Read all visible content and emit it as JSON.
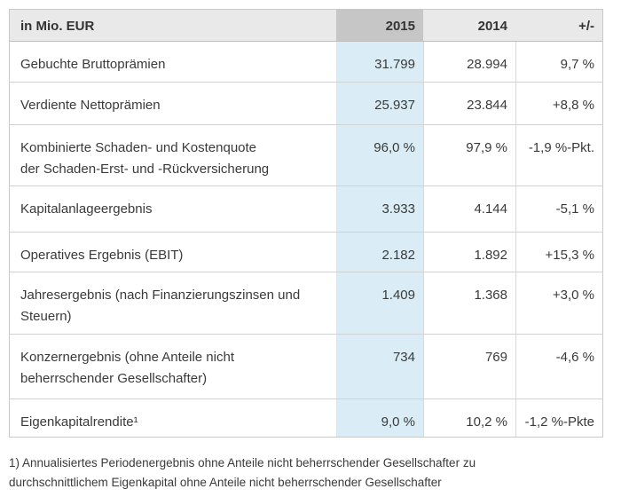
{
  "table": {
    "unit_note": "in Mio. EUR",
    "header": {
      "y2015": "2015",
      "y2014": "2014",
      "delta": "+/-"
    },
    "rows": [
      {
        "label_lines": [
          "Gebuchte Bruttoprämien"
        ],
        "v2015": "31.799",
        "v2014": "28.994",
        "delta": "9,7 %"
      },
      {
        "label_lines": [
          "Verdiente Nettoprämien"
        ],
        "v2015": "25.937",
        "v2014": "23.844",
        "delta": "+8,8 %"
      },
      {
        "label_lines": [
          "Kombinierte Schaden- und Kostenquote",
          "der Schaden-Erst- und -Rückversicherung"
        ],
        "v2015": "96,0 %",
        "v2014": "97,9 %",
        "delta": "-1,9 %-Pkt."
      },
      {
        "label_lines": [
          "Kapitalanlageergebnis"
        ],
        "v2015": "3.933",
        "v2014": "4.144",
        "delta": "-5,1 %"
      },
      {
        "label_lines": [
          "Operatives Ergebnis (EBIT)"
        ],
        "v2015": "2.182",
        "v2014": "1.892",
        "delta": "+15,3 %"
      },
      {
        "label_lines": [
          "Jahresergebnis (nach Finanzierungszinsen und",
          "Steuern)"
        ],
        "v2015": "1.409",
        "v2014": "1.368",
        "delta": "+3,0 %"
      },
      {
        "label_lines": [
          "Konzernergebnis (ohne Anteile nicht",
          "beherrschender Gesellschafter)"
        ],
        "v2015": "734",
        "v2014": "769",
        "delta": "-4,6 %"
      },
      {
        "label_lines": [
          "Eigenkapitalrendite¹"
        ],
        "v2015": "9,0 %",
        "v2014": "10,2 %",
        "delta": "-1,2 %-Pkte"
      }
    ]
  },
  "footnote": {
    "lines": [
      "1) Annualisiertes Periodenergebnis ohne Anteile nicht beherrschender Gesellschafter zu",
      "durchschnittlichem Eigenkapital ohne Anteile nicht beherrschender Gesellschafter"
    ]
  },
  "colors": {
    "highlight_column_bg": "#daedf6",
    "header_row_bg": "#e9e9e9",
    "header_2015_cell_bg": "#c6c6c6",
    "border": "#d2d2d2",
    "text": "#3a3a3a"
  }
}
